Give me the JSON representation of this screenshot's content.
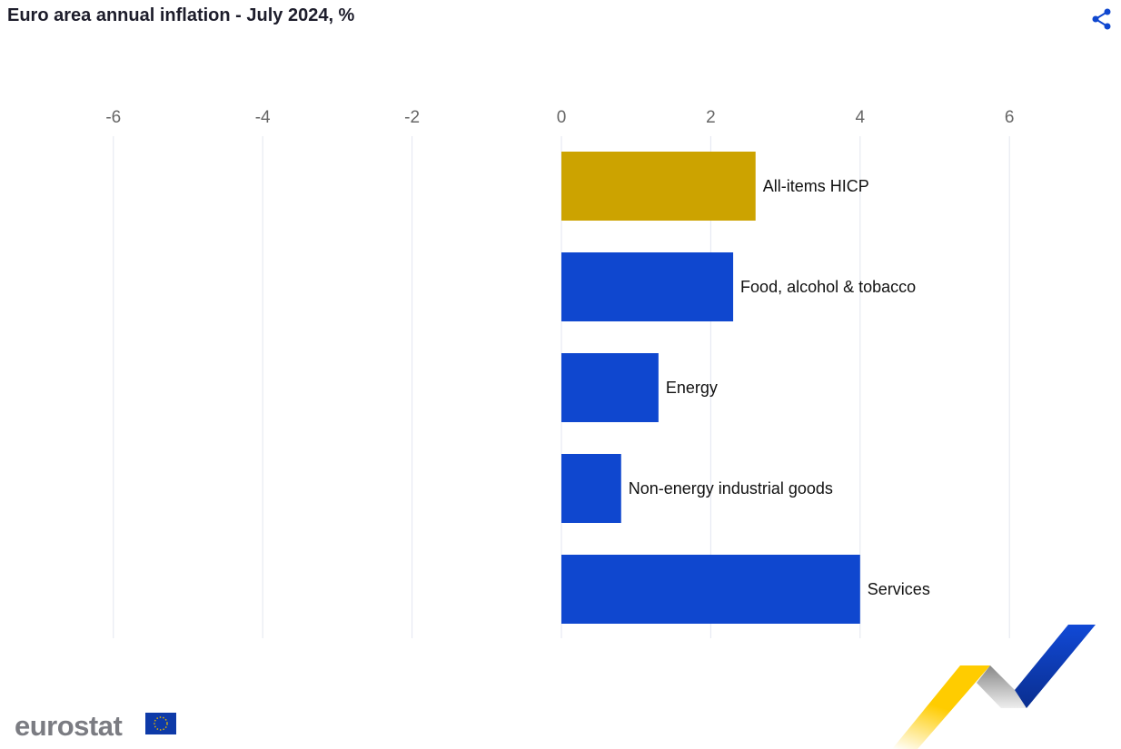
{
  "header": {
    "title": "Euro area annual inflation - July 2024, %",
    "share_icon": "share-icon"
  },
  "chart_data": {
    "type": "bar",
    "orientation": "horizontal",
    "title": "Euro area annual inflation - July 2024, %",
    "categories": [
      "All-items HICP",
      "Food, alcohol & tobacco",
      "Energy",
      "Non-energy industrial goods",
      "Services"
    ],
    "values": [
      2.6,
      2.3,
      1.3,
      0.8,
      4.0
    ],
    "colors": [
      "#cca300",
      "#0f47cf",
      "#0f47cf",
      "#0f47cf",
      "#0f47cf"
    ],
    "xlim": [
      -6,
      7.2
    ],
    "xticks": [
      -6,
      -4,
      -2,
      0,
      2,
      4,
      6
    ],
    "xaxis_position": "top",
    "grid": true,
    "xlabel": "",
    "ylabel": ""
  },
  "footer": {
    "logo": "eurostat"
  }
}
